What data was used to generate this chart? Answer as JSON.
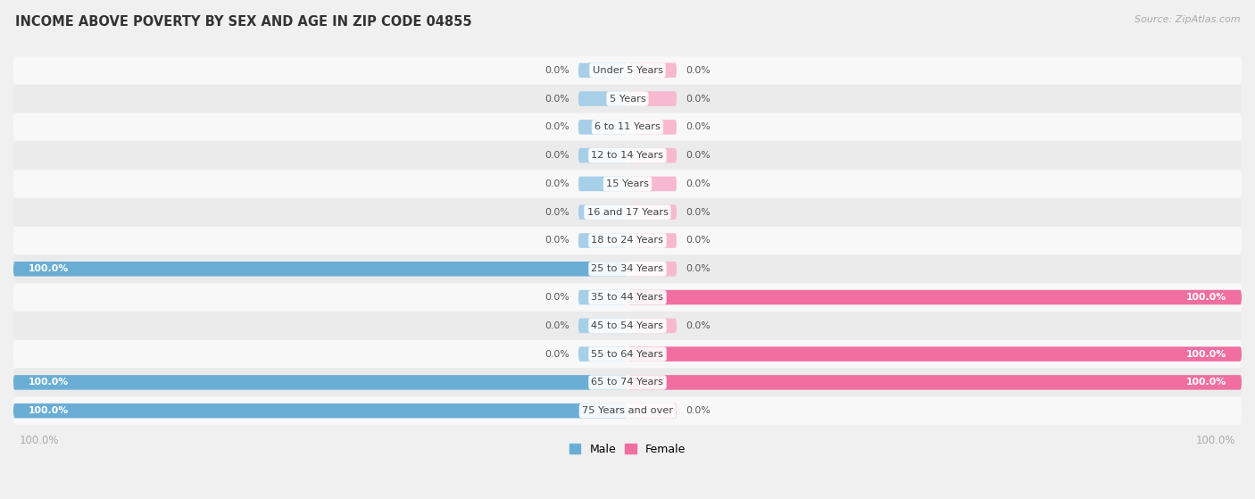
{
  "title": "INCOME ABOVE POVERTY BY SEX AND AGE IN ZIP CODE 04855",
  "source": "Source: ZipAtlas.com",
  "categories": [
    "Under 5 Years",
    "5 Years",
    "6 to 11 Years",
    "12 to 14 Years",
    "15 Years",
    "16 and 17 Years",
    "18 to 24 Years",
    "25 to 34 Years",
    "35 to 44 Years",
    "45 to 54 Years",
    "55 to 64 Years",
    "65 to 74 Years",
    "75 Years and over"
  ],
  "male_values": [
    0.0,
    0.0,
    0.0,
    0.0,
    0.0,
    0.0,
    0.0,
    100.0,
    0.0,
    0.0,
    0.0,
    100.0,
    100.0
  ],
  "female_values": [
    0.0,
    0.0,
    0.0,
    0.0,
    0.0,
    0.0,
    0.0,
    0.0,
    100.0,
    0.0,
    100.0,
    100.0,
    0.0
  ],
  "male_color": "#6aaed6",
  "male_stub_color": "#a8cfe8",
  "female_color": "#f06fa0",
  "female_stub_color": "#f7b8d0",
  "male_label": "Male",
  "female_label": "Female",
  "bar_height": 0.52,
  "bg_color": "#f0f0f0",
  "row_bg_even": "#f8f8f8",
  "row_bg_odd": "#ebebeb",
  "label_color": "#444444",
  "title_color": "#333333",
  "value_label_color": "#555555",
  "axis_label_color": "#aaaaaa",
  "source_color": "#aaaaaa",
  "xlim": 100.0,
  "stub_size": 8.0,
  "bottom_label": "100.0%"
}
